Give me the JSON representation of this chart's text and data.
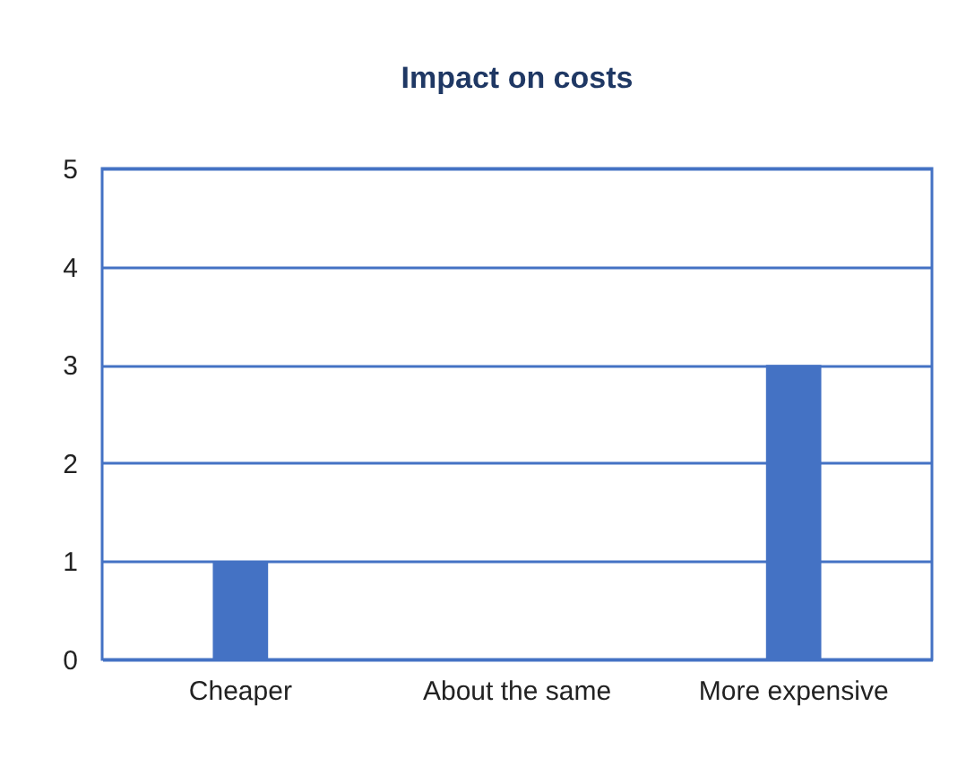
{
  "chart_data": {
    "type": "bar",
    "title": "Impact on costs",
    "categories": [
      "Cheaper",
      "About the same",
      "More expensive"
    ],
    "values": [
      1,
      0,
      3
    ],
    "color": "#4472c4",
    "ylim": [
      0,
      5
    ],
    "yticks": [
      0,
      1,
      2,
      3,
      4,
      5
    ],
    "grid": "y"
  }
}
